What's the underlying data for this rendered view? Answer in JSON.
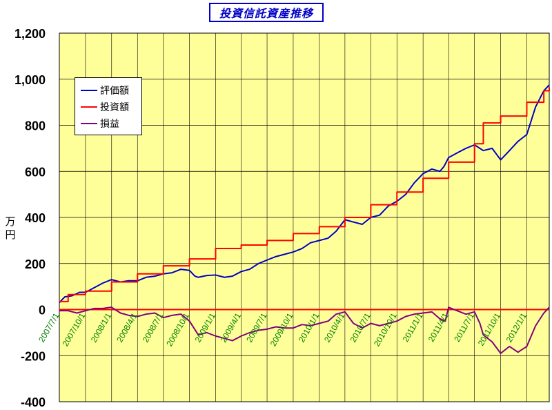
{
  "chart_data": {
    "type": "line",
    "title": "投資信託資産推移",
    "ylabel": "万円",
    "ylim": [
      -400,
      1200
    ],
    "yticks": [
      1200,
      1000,
      800,
      600,
      400,
      200,
      0,
      -200,
      -400
    ],
    "ytick_labels": [
      "1,200",
      "1,000",
      "800",
      "600",
      "400",
      "200",
      "0",
      "-200",
      "-400"
    ],
    "xlim": [
      "2007/7/1",
      "2012/3/20"
    ],
    "xticks": [
      "2007/7/1",
      "2007/10/1",
      "2008/1/1",
      "2008/4/1",
      "2008/7/1",
      "2008/10/1",
      "2009/1/1",
      "2009/4/1",
      "2009/7/1",
      "2009/10/1",
      "2010/1/1",
      "2010/4/1",
      "2010/7/1",
      "2010/10/1",
      "2011/1/1",
      "2011/4/1",
      "2011/7/1",
      "2011/10/1",
      "2012/1/1"
    ],
    "grid": true,
    "legend": "top-left",
    "colors": {
      "plot_background": "#ffff99",
      "grid": "#000000",
      "tick_label_x": "#008000",
      "zero_line": "#ff0000",
      "title": "#0000c8"
    },
    "series": [
      {
        "name": "評価額",
        "color": "#0000c8",
        "points": [
          [
            "2007/7/1",
            30
          ],
          [
            "2007/7/20",
            55
          ],
          [
            "2007/8/15",
            60
          ],
          [
            "2007/9/10",
            75
          ],
          [
            "2007/10/1",
            75
          ],
          [
            "2007/11/1",
            95
          ],
          [
            "2007/12/1",
            115
          ],
          [
            "2008/1/1",
            130
          ],
          [
            "2008/2/1",
            120
          ],
          [
            "2008/3/1",
            125
          ],
          [
            "2008/4/1",
            125
          ],
          [
            "2008/5/1",
            140
          ],
          [
            "2008/6/1",
            145
          ],
          [
            "2008/7/1",
            155
          ],
          [
            "2008/8/1",
            160
          ],
          [
            "2008/9/1",
            175
          ],
          [
            "2008/10/1",
            170
          ],
          [
            "2008/10/20",
            145
          ],
          [
            "2008/11/1",
            140
          ],
          [
            "2008/12/1",
            148
          ],
          [
            "2009/1/1",
            150
          ],
          [
            "2009/2/1",
            140
          ],
          [
            "2009/3/1",
            145
          ],
          [
            "2009/4/1",
            165
          ],
          [
            "2009/5/1",
            175
          ],
          [
            "2009/6/1",
            200
          ],
          [
            "2009/7/1",
            215
          ],
          [
            "2009/8/1",
            230
          ],
          [
            "2009/9/1",
            240
          ],
          [
            "2009/10/1",
            250
          ],
          [
            "2009/11/1",
            265
          ],
          [
            "2009/12/1",
            290
          ],
          [
            "2010/1/1",
            300
          ],
          [
            "2010/2/1",
            310
          ],
          [
            "2010/3/1",
            340
          ],
          [
            "2010/4/1",
            390
          ],
          [
            "2010/5/1",
            380
          ],
          [
            "2010/6/1",
            370
          ],
          [
            "2010/7/1",
            400
          ],
          [
            "2010/8/1",
            410
          ],
          [
            "2010/9/1",
            450
          ],
          [
            "2010/10/1",
            470
          ],
          [
            "2010/11/1",
            500
          ],
          [
            "2010/12/1",
            550
          ],
          [
            "2011/1/1",
            590
          ],
          [
            "2011/2/1",
            610
          ],
          [
            "2011/3/1",
            600
          ],
          [
            "2011/3/15",
            620
          ],
          [
            "2011/4/1",
            660
          ],
          [
            "2011/5/1",
            680
          ],
          [
            "2011/6/1",
            700
          ],
          [
            "2011/7/1",
            715
          ],
          [
            "2011/8/1",
            690
          ],
          [
            "2011/9/1",
            700
          ],
          [
            "2011/10/1",
            650
          ],
          [
            "2011/11/1",
            690
          ],
          [
            "2011/12/1",
            730
          ],
          [
            "2012/1/1",
            760
          ],
          [
            "2012/2/1",
            880
          ],
          [
            "2012/3/1",
            950
          ],
          [
            "2012/3/20",
            975
          ]
        ]
      },
      {
        "name": "投資額",
        "color": "#ff0000",
        "points": [
          [
            "2007/7/1",
            35
          ],
          [
            "2007/8/1",
            65
          ],
          [
            "2007/10/1",
            80
          ],
          [
            "2008/1/1",
            120
          ],
          [
            "2008/4/1",
            155
          ],
          [
            "2008/7/1",
            190
          ],
          [
            "2008/10/1",
            220
          ],
          [
            "2009/1/1",
            265
          ],
          [
            "2009/4/1",
            280
          ],
          [
            "2009/7/1",
            300
          ],
          [
            "2009/10/1",
            330
          ],
          [
            "2010/1/1",
            360
          ],
          [
            "2010/4/1",
            400
          ],
          [
            "2010/7/1",
            455
          ],
          [
            "2010/10/1",
            510
          ],
          [
            "2011/1/1",
            570
          ],
          [
            "2011/4/1",
            640
          ],
          [
            "2011/7/1",
            720
          ],
          [
            "2011/8/1",
            810
          ],
          [
            "2011/10/1",
            840
          ],
          [
            "2012/1/1",
            900
          ],
          [
            "2012/3/1",
            950
          ],
          [
            "2012/3/20",
            965
          ]
        ]
      },
      {
        "name": "損益",
        "color": "#800080",
        "points": [
          [
            "2007/7/1",
            -5
          ],
          [
            "2007/8/1",
            -5
          ],
          [
            "2007/9/1",
            -15
          ],
          [
            "2007/10/1",
            -5
          ],
          [
            "2007/11/1",
            5
          ],
          [
            "2007/12/1",
            5
          ],
          [
            "2008/1/1",
            10
          ],
          [
            "2008/2/1",
            -15
          ],
          [
            "2008/3/1",
            -25
          ],
          [
            "2008/4/1",
            -30
          ],
          [
            "2008/5/1",
            -20
          ],
          [
            "2008/6/1",
            -15
          ],
          [
            "2008/7/1",
            -35
          ],
          [
            "2008/8/1",
            -25
          ],
          [
            "2008/9/1",
            -20
          ],
          [
            "2008/10/1",
            -50
          ],
          [
            "2008/11/1",
            -110
          ],
          [
            "2008/12/1",
            -100
          ],
          [
            "2009/1/1",
            -115
          ],
          [
            "2009/2/1",
            -125
          ],
          [
            "2009/3/1",
            -135
          ],
          [
            "2009/4/1",
            -115
          ],
          [
            "2009/5/1",
            -100
          ],
          [
            "2009/6/1",
            -90
          ],
          [
            "2009/7/1",
            -85
          ],
          [
            "2009/8/1",
            -75
          ],
          [
            "2009/9/1",
            -80
          ],
          [
            "2009/10/1",
            -80
          ],
          [
            "2009/11/1",
            -65
          ],
          [
            "2009/12/1",
            -70
          ],
          [
            "2010/1/1",
            -60
          ],
          [
            "2010/2/1",
            -50
          ],
          [
            "2010/3/1",
            -20
          ],
          [
            "2010/4/1",
            -10
          ],
          [
            "2010/5/1",
            -60
          ],
          [
            "2010/6/1",
            -80
          ],
          [
            "2010/7/1",
            -60
          ],
          [
            "2010/8/1",
            -70
          ],
          [
            "2010/9/1",
            -60
          ],
          [
            "2010/10/1",
            -50
          ],
          [
            "2010/11/1",
            -30
          ],
          [
            "2010/12/1",
            -20
          ],
          [
            "2011/1/1",
            -15
          ],
          [
            "2011/2/1",
            -10
          ],
          [
            "2011/3/1",
            -40
          ],
          [
            "2011/3/20",
            -50
          ],
          [
            "2011/4/1",
            10
          ],
          [
            "2011/5/1",
            -5
          ],
          [
            "2011/6/1",
            -20
          ],
          [
            "2011/7/1",
            -10
          ],
          [
            "2011/7/20",
            -60
          ],
          [
            "2011/8/1",
            -110
          ],
          [
            "2011/9/1",
            -140
          ],
          [
            "2011/10/1",
            -190
          ],
          [
            "2011/11/1",
            -160
          ],
          [
            "2011/12/1",
            -185
          ],
          [
            "2012/1/1",
            -160
          ],
          [
            "2012/2/1",
            -70
          ],
          [
            "2012/3/1",
            -15
          ],
          [
            "2012/3/20",
            10
          ]
        ]
      }
    ]
  }
}
